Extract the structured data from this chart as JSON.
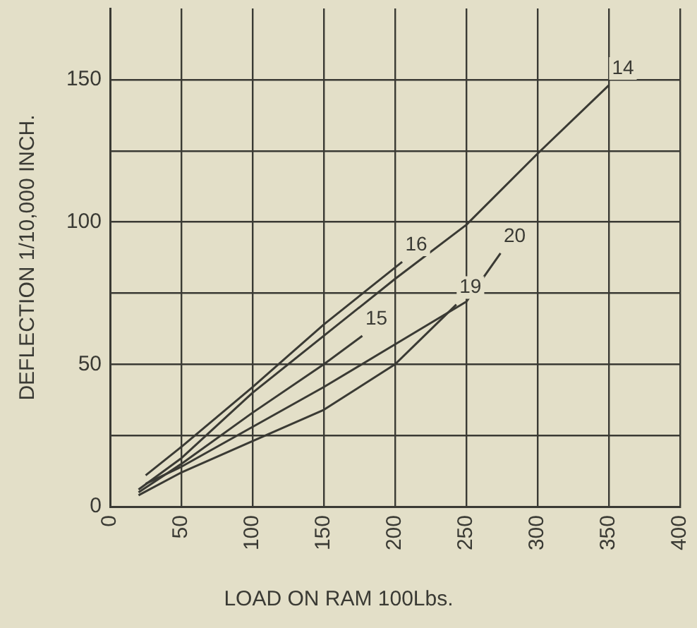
{
  "chart_data": {
    "type": "line",
    "xlabel": "LOAD ON RAM 100Lbs.",
    "ylabel": "DEFLECTION 1/10,000 INCH.",
    "xlim": [
      0,
      400
    ],
    "xticks": [
      0,
      50,
      100,
      150,
      200,
      250,
      300,
      350,
      400
    ],
    "ylim": [
      0,
      175
    ],
    "yticks": [
      0,
      {
        "value": 25,
        "label": null
      },
      50,
      {
        "value": 75,
        "label": null
      },
      100,
      {
        "value": 125,
        "label": null
      },
      150
    ],
    "grid": true,
    "legend": false,
    "marker": "none",
    "line_style": "solid",
    "series": [
      {
        "name": "14",
        "color": "#3a3a34",
        "x": [
          20,
          50,
          100,
          150,
          200,
          250,
          300,
          350
        ],
        "values": [
          6,
          17,
          40,
          60,
          80,
          99,
          124,
          148
        ]
      },
      {
        "name": "16",
        "color": "#3a3a34",
        "x": [
          25,
          50,
          100,
          150,
          205
        ],
        "values": [
          11,
          21,
          42,
          64,
          86
        ]
      },
      {
        "name": "15",
        "color": "#3a3a34",
        "x": [
          20,
          50,
          100,
          150,
          177
        ],
        "values": [
          5,
          15,
          33,
          50,
          60
        ]
      },
      {
        "name": "20",
        "color": "#3a3a34",
        "x": [
          25,
          50,
          100,
          150,
          200,
          250,
          274
        ],
        "values": [
          8,
          14,
          28,
          42,
          57,
          72,
          89
        ]
      },
      {
        "name": "19",
        "color": "#3a3a34",
        "x": [
          20,
          50,
          100,
          150,
          200,
          243
        ],
        "values": [
          4,
          12,
          23,
          34,
          50,
          71
        ]
      }
    ]
  }
}
